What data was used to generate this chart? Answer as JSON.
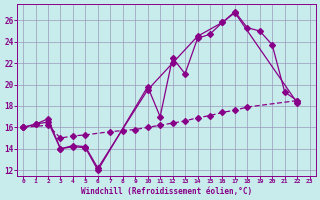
{
  "background_color": "#c8ecec",
  "grid_color": "#9999bb",
  "line_color": "#880088",
  "xlim": [
    -0.5,
    23.5
  ],
  "ylim": [
    11.5,
    27.5
  ],
  "xlabel": "Windchill (Refroidissement éolien,°C)",
  "yticks": [
    12,
    14,
    16,
    18,
    20,
    22,
    24,
    26
  ],
  "xticks": [
    0,
    1,
    2,
    3,
    4,
    5,
    6,
    7,
    8,
    9,
    10,
    11,
    12,
    13,
    14,
    15,
    16,
    17,
    18,
    19,
    20,
    21,
    22,
    23
  ],
  "line1_x": [
    0,
    1,
    2,
    3,
    4,
    5,
    6,
    10,
    11,
    12,
    13,
    14,
    15,
    16,
    17,
    18,
    19,
    20,
    21,
    22
  ],
  "line1_y": [
    16.0,
    16.3,
    16.5,
    14.0,
    14.2,
    14.1,
    12.0,
    19.8,
    17.0,
    22.5,
    21.0,
    24.3,
    24.7,
    25.8,
    26.8,
    25.3,
    25.0,
    23.7,
    19.3,
    18.5
  ],
  "line2_x": [
    0,
    1,
    2,
    3,
    4,
    5,
    6,
    10,
    12,
    14,
    16,
    17,
    22
  ],
  "line2_y": [
    16.0,
    16.3,
    16.8,
    14.0,
    14.3,
    14.2,
    12.2,
    19.5,
    22.0,
    24.5,
    25.8,
    26.7,
    18.3
  ],
  "line3_x": [
    0,
    2,
    3,
    4,
    5,
    7,
    8,
    9,
    10,
    11,
    12,
    13,
    14,
    15,
    16,
    17,
    18,
    22
  ],
  "line3_y": [
    16.0,
    16.2,
    15.0,
    15.2,
    15.3,
    15.6,
    15.7,
    15.8,
    16.0,
    16.2,
    16.4,
    16.6,
    16.9,
    17.1,
    17.4,
    17.6,
    17.9,
    18.5
  ],
  "figwidth": 3.2,
  "figheight": 2.0,
  "dpi": 100
}
